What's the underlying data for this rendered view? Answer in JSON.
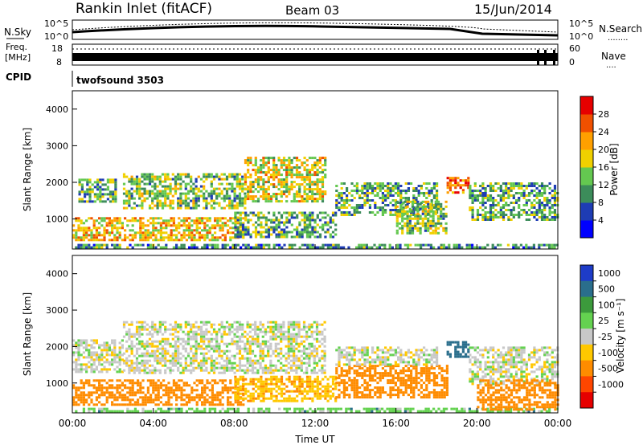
{
  "header": {
    "station": "Rankin Inlet (fitACF)",
    "beam": "Beam 03",
    "date": "15/Jun/2014"
  },
  "noise_panel": {
    "left_label": "N.Sky",
    "right_label": "N.Search",
    "right_key": "........",
    "tick_top": "10^5",
    "tick_bottom": "10^0"
  },
  "freq_panel": {
    "left_label_1": "Freq.",
    "left_label_2": "[MHz]",
    "right_label": "Nave",
    "right_key": "....",
    "left_ticks": [
      "18",
      "8"
    ],
    "right_ticks": [
      "60",
      "0"
    ]
  },
  "cpid_panel": {
    "label": "CPID",
    "program": "twofsound 3503"
  },
  "colors": {
    "scale_power": [
      "#0000ff",
      "#1e3cb4",
      "#3c8c5a",
      "#64c850",
      "#f0d000",
      "#ffa000",
      "#f05000",
      "#e60000"
    ],
    "scale_velocity": [
      "#1e3cc8",
      "#2a6e8c",
      "#3c9a3c",
      "#64d250",
      "#c8c8c8",
      "#ffc800",
      "#ff8c00",
      "#ff4600",
      "#e60000"
    ]
  },
  "chart_data": [
    {
      "type": "heatmap",
      "quantity": "power",
      "ylabel": "Slant Range [km]",
      "xlim": [
        "00:00",
        "24:00"
      ],
      "ylim": [
        180,
        4500
      ],
      "y_ticks": [
        1000,
        2000,
        3000,
        4000
      ],
      "x_ticks": [
        "00:00",
        "04:00",
        "08:00",
        "12:00",
        "16:00",
        "20:00",
        "00:00"
      ],
      "colorbar": {
        "label": "Power [dB]",
        "range": [
          0,
          32
        ],
        "ticks": [
          4,
          8,
          12,
          16,
          20,
          24,
          28
        ]
      },
      "echo_regions": [
        {
          "hours": [
            0,
            24
          ],
          "range_km": [
            200,
            320
          ],
          "power_db": 10
        },
        {
          "hours": [
            0,
            8.5
          ],
          "range_km": [
            400,
            1050
          ],
          "power_db": 20
        },
        {
          "hours": [
            0.3,
            2.2
          ],
          "range_km": [
            1500,
            2100
          ],
          "power_db": 12
        },
        {
          "hours": [
            2.5,
            8.5
          ],
          "range_km": [
            1300,
            2250
          ],
          "power_db": 14
        },
        {
          "hours": [
            8.5,
            12.5
          ],
          "range_km": [
            1500,
            2700
          ],
          "power_db": 18
        },
        {
          "hours": [
            8,
            13
          ],
          "range_km": [
            500,
            1200
          ],
          "power_db": 12
        },
        {
          "hours": [
            13,
            18
          ],
          "range_km": [
            1100,
            2000
          ],
          "power_db": 12
        },
        {
          "hours": [
            16,
            18.5
          ],
          "range_km": [
            600,
            1500
          ],
          "power_db": 14
        },
        {
          "hours": [
            18.5,
            19.6
          ],
          "range_km": [
            1700,
            2150
          ],
          "power_db": 24
        },
        {
          "hours": [
            19.6,
            24
          ],
          "range_km": [
            1000,
            2000
          ],
          "power_db": 12
        }
      ]
    },
    {
      "type": "heatmap",
      "quantity": "velocity",
      "ylabel": "Slant Range [km]",
      "xlabel": "Time UT",
      "xlim": [
        "00:00",
        "24:00"
      ],
      "ylim": [
        180,
        4500
      ],
      "y_ticks": [
        1000,
        2000,
        3000,
        4000
      ],
      "x_ticks": [
        "00:00",
        "04:00",
        "08:00",
        "12:00",
        "16:00",
        "20:00",
        "00:00"
      ],
      "colorbar": {
        "label": "Velocity [m s⁻¹]",
        "tick_labels": [
          "1000",
          "500",
          "100",
          "25",
          "-25",
          "-100",
          "-500",
          "-1000"
        ]
      },
      "echo_regions": [
        {
          "hours": [
            0,
            24
          ],
          "range_km": [
            200,
            320
          ],
          "velocity_ms": 60
        },
        {
          "hours": [
            0,
            2.5
          ],
          "range_km": [
            1300,
            2200
          ],
          "velocity_ms": 0
        },
        {
          "hours": [
            2.5,
            12.5
          ],
          "range_km": [
            1300,
            2700
          ],
          "velocity_ms": 0
        },
        {
          "hours": [
            0,
            8.5
          ],
          "range_km": [
            400,
            1100
          ],
          "velocity_ms": -150
        },
        {
          "hours": [
            8,
            13
          ],
          "range_km": [
            500,
            1200
          ],
          "velocity_ms": -80
        },
        {
          "hours": [
            13,
            18.5
          ],
          "range_km": [
            600,
            1500
          ],
          "velocity_ms": -150
        },
        {
          "hours": [
            13,
            18
          ],
          "range_km": [
            1500,
            2000
          ],
          "velocity_ms": 0
        },
        {
          "hours": [
            18.5,
            19.6
          ],
          "range_km": [
            1700,
            2150
          ],
          "velocity_ms": 150
        },
        {
          "hours": [
            19.6,
            24
          ],
          "range_km": [
            1000,
            2000
          ],
          "velocity_ms": 0
        },
        {
          "hours": [
            20,
            24
          ],
          "range_km": [
            300,
            1100
          ],
          "velocity_ms": -200
        }
      ]
    }
  ]
}
